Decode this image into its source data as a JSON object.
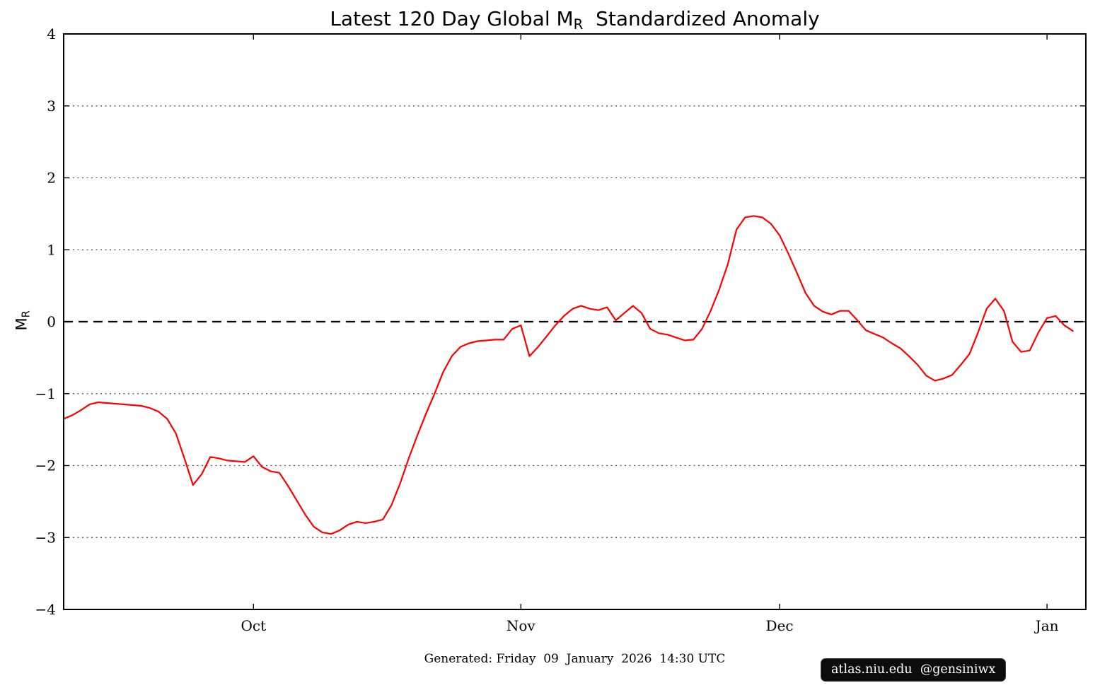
{
  "title": {
    "part1": "Latest 120 Day Global M",
    "sub": "R",
    "part2": "  Standardized Anomaly"
  },
  "ylabel": {
    "part1": "M",
    "sub": "R"
  },
  "footer": {
    "generated": "Generated: Friday  09  January  2026  14:30 UTC",
    "badge": "atlas.niu.edu  @gensiniwx"
  },
  "chart_data": {
    "type": "line",
    "title": "Latest 120 Day Global M_R Standardized Anomaly",
    "xlabel": "",
    "ylabel": "M_R",
    "x_description": "daily index over the latest 120-day window; month ticks mark month starts",
    "xlim": [
      0,
      118.5
    ],
    "ylim": [
      -4,
      4
    ],
    "y_ticks": [
      -4,
      -3,
      -2,
      -1,
      0,
      1,
      2,
      3,
      4
    ],
    "x_ticks": [
      {
        "label": "Oct",
        "day": 22
      },
      {
        "label": "Nov",
        "day": 53
      },
      {
        "label": "Dec",
        "day": 83
      },
      {
        "label": "Jan",
        "day": 114
      }
    ],
    "grid": {
      "style": "dotted",
      "color": "#555555",
      "at": [
        -3,
        -2,
        -1,
        1,
        2,
        3
      ]
    },
    "zero_line": {
      "style": "dashed",
      "color": "#000000",
      "value": 0
    },
    "series": [
      {
        "name": "M_R standardized anomaly",
        "color": "#ff0000",
        "values": [
          -1.35,
          -1.3,
          -1.23,
          -1.15,
          -1.12,
          -1.13,
          -1.14,
          -1.15,
          -1.16,
          -1.17,
          -1.2,
          -1.25,
          -1.35,
          -1.55,
          -1.9,
          -2.27,
          -2.12,
          -1.88,
          -1.9,
          -1.93,
          -1.94,
          -1.95,
          -1.87,
          -2.02,
          -2.08,
          -2.1,
          -2.28,
          -2.48,
          -2.68,
          -2.85,
          -2.93,
          -2.95,
          -2.9,
          -2.82,
          -2.78,
          -2.8,
          -2.78,
          -2.75,
          -2.55,
          -2.25,
          -1.9,
          -1.58,
          -1.28,
          -1.0,
          -0.7,
          -0.48,
          -0.35,
          -0.3,
          -0.27,
          -0.26,
          -0.25,
          -0.25,
          -0.1,
          -0.05,
          -0.48,
          -0.35,
          -0.2,
          -0.05,
          0.08,
          0.18,
          0.22,
          0.18,
          0.16,
          0.2,
          0.02,
          0.12,
          0.22,
          0.12,
          -0.1,
          -0.16,
          -0.18,
          -0.22,
          -0.26,
          -0.25,
          -0.1,
          0.15,
          0.45,
          0.8,
          1.28,
          1.45,
          1.47,
          1.45,
          1.36,
          1.2,
          0.95,
          0.68,
          0.4,
          0.22,
          0.14,
          0.1,
          0.15,
          0.15,
          0.02,
          -0.12,
          -0.17,
          -0.22,
          -0.3,
          -0.37,
          -0.48,
          -0.6,
          -0.75,
          -0.82,
          -0.79,
          -0.74,
          -0.6,
          -0.45,
          -0.15,
          0.18,
          0.32,
          0.15,
          -0.28,
          -0.42,
          -0.4,
          -0.15,
          0.05,
          0.08,
          -0.05,
          -0.13
        ]
      }
    ],
    "legend": null
  }
}
